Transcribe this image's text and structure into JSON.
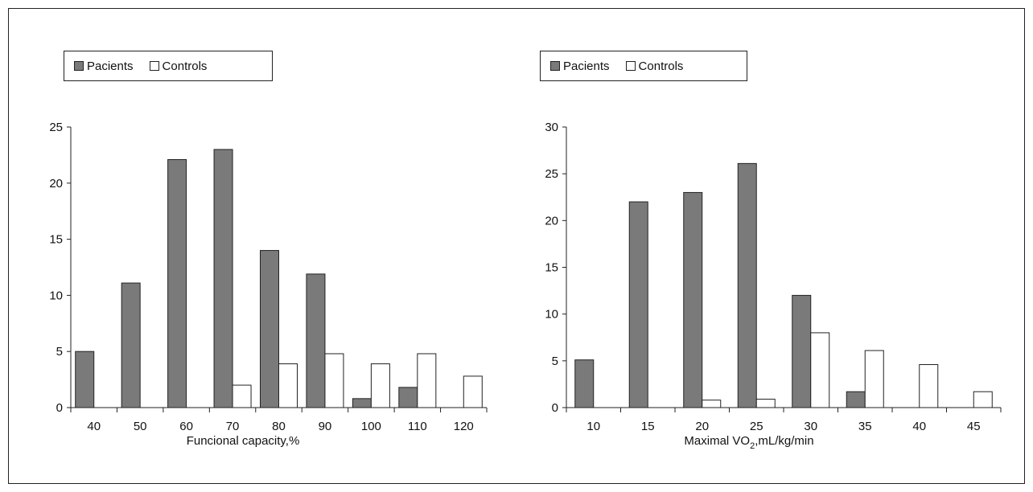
{
  "colors": {
    "patients": "#7a7a7a",
    "controls": "#ffffff",
    "axis": "#222222"
  },
  "chart_data": [
    {
      "type": "bar",
      "xlabel": "Funcional capacity,%",
      "ylabel": "",
      "ylim": [
        0,
        25
      ],
      "yticks": [
        "0",
        "5",
        "10",
        "15",
        "20",
        "25"
      ],
      "legend_position": "top-left",
      "categories": [
        "40",
        "50",
        "60",
        "70",
        "80",
        "90",
        "100",
        "110",
        "120"
      ],
      "series": [
        {
          "name": "Pacients",
          "color": "#7a7a7a",
          "values": [
            5,
            11.1,
            22.1,
            23,
            14,
            11.9,
            0.8,
            1.8,
            0
          ]
        },
        {
          "name": "Controls",
          "color": "#ffffff",
          "values": [
            0,
            0,
            0,
            2,
            3.9,
            4.8,
            3.9,
            4.8,
            2.8
          ]
        }
      ]
    },
    {
      "type": "bar",
      "xlabel_main": "Maximal VO",
      "xlabel_sub": "2",
      "xlabel_rest": ",mL/kg/min",
      "ylabel": "",
      "ylim": [
        0,
        30
      ],
      "yticks": [
        "0",
        "5",
        "10",
        "15",
        "20",
        "25",
        "30"
      ],
      "legend_position": "top-left",
      "categories": [
        "10",
        "15",
        "20",
        "25",
        "30",
        "35",
        "40",
        "45"
      ],
      "series": [
        {
          "name": "Pacients",
          "color": "#7a7a7a",
          "values": [
            5.1,
            22,
            23,
            26.1,
            12,
            1.7,
            0,
            0
          ]
        },
        {
          "name": "Controls",
          "color": "#ffffff",
          "values": [
            0,
            0,
            0.8,
            0.9,
            8,
            6.1,
            4.6,
            1.7
          ]
        }
      ]
    }
  ]
}
